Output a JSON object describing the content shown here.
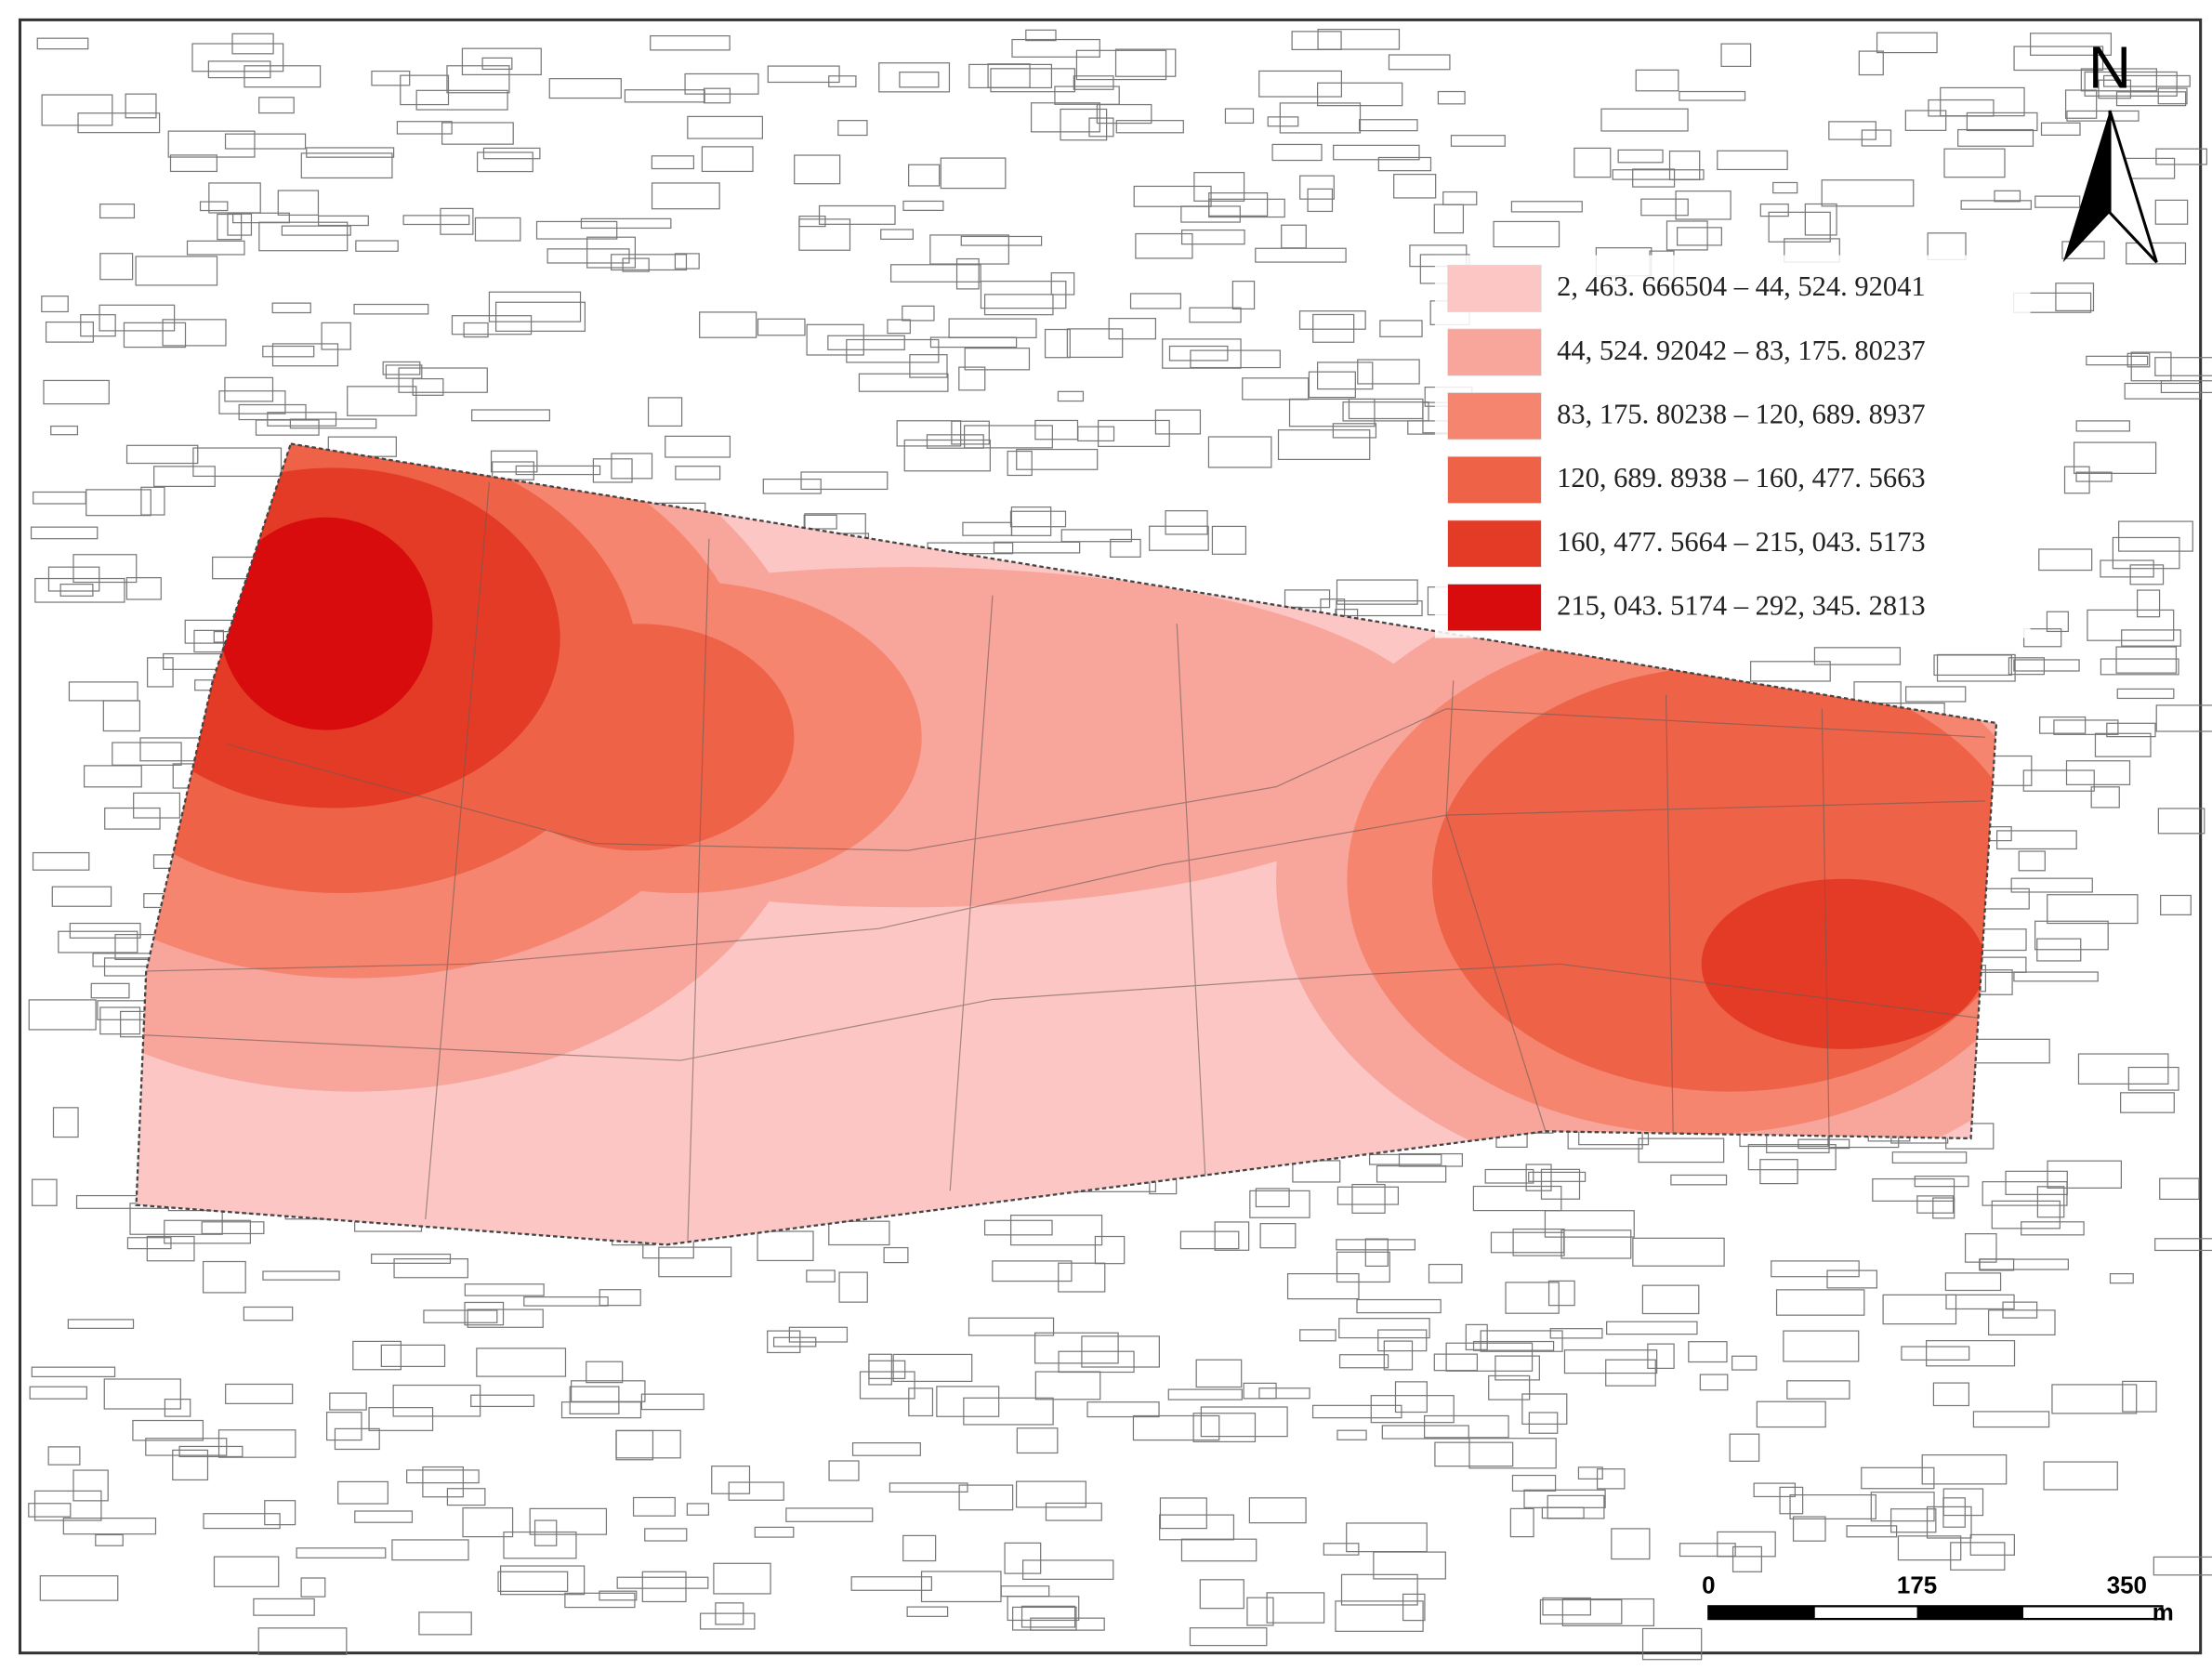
{
  "north_arrow": {
    "label": "N"
  },
  "legend": {
    "items": [
      {
        "label": "2, 463. 666504 – 44, 524. 92041",
        "color": "#fbc6c4"
      },
      {
        "label": "44, 524. 92042 – 83, 175. 80237",
        "color": "#f8a59c"
      },
      {
        "label": "83, 175. 80238 – 120, 689. 8937",
        "color": "#f5856f"
      },
      {
        "label": "120, 689. 8938 – 160, 477. 5663",
        "color": "#ee6248"
      },
      {
        "label": "160, 477. 5664 – 215, 043. 5173",
        "color": "#e33b26"
      },
      {
        "label": "215, 043. 5174 – 292, 345. 2813",
        "color": "#d80b0d"
      }
    ]
  },
  "scale_bar": {
    "ticks": [
      "0",
      "175",
      "350"
    ],
    "unit": "m"
  }
}
